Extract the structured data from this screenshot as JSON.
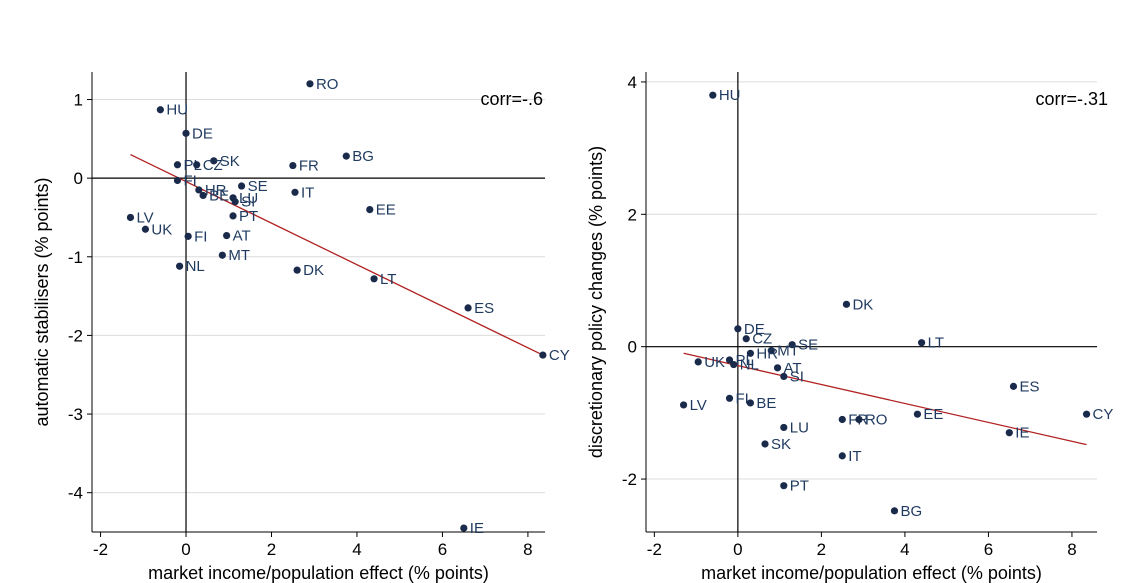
{
  "chart_data": [
    {
      "type": "scatter",
      "xlabel": "market income/population effect (% points)",
      "ylabel": "automatic stabilisers (% points)",
      "xlim": [
        -2.2,
        8.4
      ],
      "ylim": [
        -4.5,
        1.35
      ],
      "xticks": [
        -2,
        0,
        2,
        4,
        6,
        8
      ],
      "yticks": [
        1,
        0,
        -1,
        -2,
        -3,
        -4
      ],
      "grid": true,
      "annotation": "corr=-.6",
      "trend": {
        "x0": -1.3,
        "y0": 0.3,
        "x1": 8.35,
        "y1": -2.25
      },
      "points": [
        {
          "label": "RO",
          "x": 2.9,
          "y": 1.2
        },
        {
          "label": "HU",
          "x": -0.6,
          "y": 0.87
        },
        {
          "label": "DE",
          "x": 0.0,
          "y": 0.57
        },
        {
          "label": "BG",
          "x": 3.75,
          "y": 0.28
        },
        {
          "label": "SK",
          "x": 0.65,
          "y": 0.22
        },
        {
          "label": "PL",
          "x": -0.2,
          "y": 0.17
        },
        {
          "label": "CZ",
          "x": 0.25,
          "y": 0.17
        },
        {
          "label": "FR",
          "x": 2.5,
          "y": 0.16
        },
        {
          "label": "FI",
          "x": -0.2,
          "y": -0.03
        },
        {
          "label": "SE",
          "x": 1.3,
          "y": -0.1
        },
        {
          "label": "HR",
          "x": 0.3,
          "y": -0.15
        },
        {
          "label": "IT",
          "x": 2.55,
          "y": -0.18
        },
        {
          "label": "BE",
          "x": 0.4,
          "y": -0.22
        },
        {
          "label": "LU",
          "x": 1.1,
          "y": -0.25
        },
        {
          "label": "SI",
          "x": 1.15,
          "y": -0.3
        },
        {
          "label": "EE",
          "x": 4.3,
          "y": -0.4
        },
        {
          "label": "PT",
          "x": 1.1,
          "y": -0.48
        },
        {
          "label": "LV",
          "x": -1.3,
          "y": -0.5
        },
        {
          "label": "UK",
          "x": -0.95,
          "y": -0.65
        },
        {
          "label": "AT",
          "x": 0.95,
          "y": -0.73
        },
        {
          "label": "FI",
          "x": 0.05,
          "y": -0.74
        },
        {
          "label": "MT",
          "x": 0.85,
          "y": -0.98
        },
        {
          "label": "NL",
          "x": -0.15,
          "y": -1.12
        },
        {
          "label": "DK",
          "x": 2.6,
          "y": -1.17
        },
        {
          "label": "LT",
          "x": 4.4,
          "y": -1.28
        },
        {
          "label": "ES",
          "x": 6.6,
          "y": -1.65
        },
        {
          "label": "CY",
          "x": 8.35,
          "y": -2.25
        },
        {
          "label": "IE",
          "x": 6.5,
          "y": -4.45
        }
      ]
    },
    {
      "type": "scatter",
      "xlabel": "market income/population effect (% points)",
      "ylabel": "discretionary policy changes (% points)",
      "xlim": [
        -2.2,
        8.6
      ],
      "ylim": [
        -2.8,
        4.15
      ],
      "xticks": [
        -2,
        0,
        2,
        4,
        6,
        8
      ],
      "yticks": [
        4,
        2,
        0,
        -2
      ],
      "grid": true,
      "annotation": "corr=-.31",
      "trend": {
        "x0": -1.3,
        "y0": -0.1,
        "x1": 8.35,
        "y1": -1.48
      },
      "points": [
        {
          "label": "HU",
          "x": -0.6,
          "y": 3.8
        },
        {
          "label": "DK",
          "x": 2.6,
          "y": 0.64
        },
        {
          "label": "DE",
          "x": 0.0,
          "y": 0.27
        },
        {
          "label": "CZ",
          "x": 0.2,
          "y": 0.12
        },
        {
          "label": "LT",
          "x": 4.4,
          "y": 0.06
        },
        {
          "label": "SE",
          "x": 1.3,
          "y": 0.03
        },
        {
          "label": "MT",
          "x": 0.8,
          "y": -0.06
        },
        {
          "label": "HR",
          "x": 0.3,
          "y": -0.1
        },
        {
          "label": "PL",
          "x": -0.2,
          "y": -0.2
        },
        {
          "label": "UK",
          "x": -0.95,
          "y": -0.23
        },
        {
          "label": "NL",
          "x": -0.1,
          "y": -0.27
        },
        {
          "label": "AT",
          "x": 0.95,
          "y": -0.32
        },
        {
          "label": "SI",
          "x": 1.1,
          "y": -0.45
        },
        {
          "label": "ES",
          "x": 6.6,
          "y": -0.6
        },
        {
          "label": "FI",
          "x": -0.2,
          "y": -0.78
        },
        {
          "label": "BE",
          "x": 0.3,
          "y": -0.85
        },
        {
          "label": "LV",
          "x": -1.3,
          "y": -0.88
        },
        {
          "label": "EE",
          "x": 4.3,
          "y": -1.02
        },
        {
          "label": "CY",
          "x": 8.35,
          "y": -1.02
        },
        {
          "label": "FR",
          "x": 2.5,
          "y": -1.1
        },
        {
          "label": "RO",
          "x": 2.9,
          "y": -1.1
        },
        {
          "label": "LU",
          "x": 1.1,
          "y": -1.22
        },
        {
          "label": "IE",
          "x": 6.5,
          "y": -1.3
        },
        {
          "label": "SK",
          "x": 0.65,
          "y": -1.47
        },
        {
          "label": "IT",
          "x": 2.5,
          "y": -1.65
        },
        {
          "label": "PT",
          "x": 1.1,
          "y": -2.1
        },
        {
          "label": "BG",
          "x": 3.75,
          "y": -2.48
        }
      ]
    }
  ],
  "colors": {
    "marker": "#1a2a4a",
    "label_text": "#1f3a5f",
    "trend_line": "#b22222",
    "grid": "#dcdcdc",
    "axis": "#000000"
  }
}
